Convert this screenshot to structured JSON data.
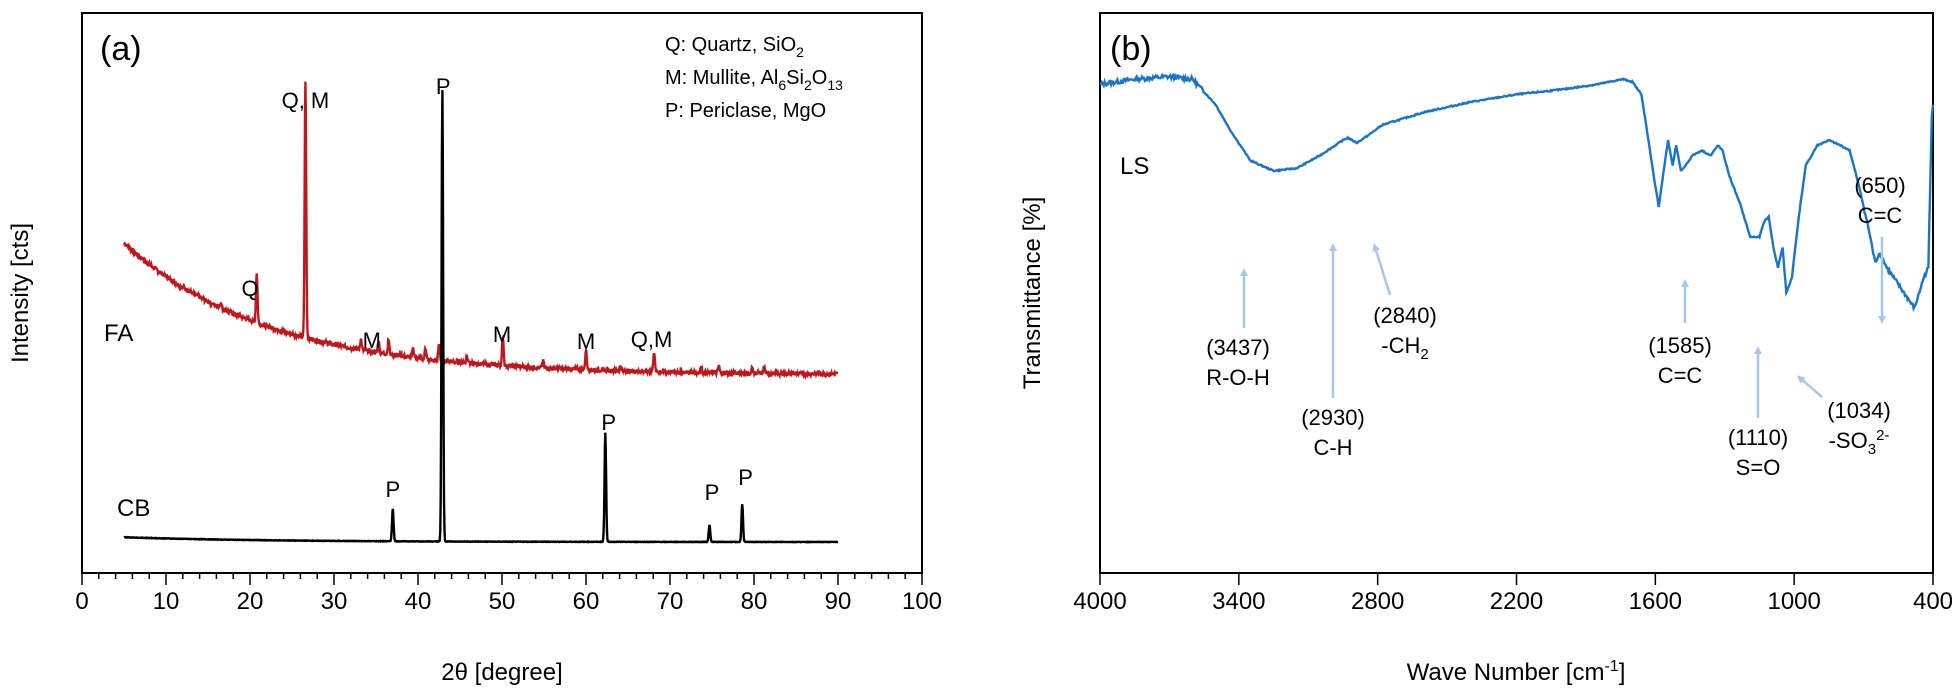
{
  "colors": {
    "fa": "#c0171d",
    "cb": "#000000",
    "ls": "#1a75c8",
    "arrow": "#a8c8ea",
    "axis": "#000000"
  },
  "chart_data": [
    {
      "type": "line",
      "panel_label": "(a)",
      "xlabel": "2θ [degree]",
      "ylabel": "Intensity [cts]",
      "xlim": [
        0,
        100
      ],
      "x_tick_labels": [
        "0",
        "10",
        "20",
        "30",
        "40",
        "50",
        "60",
        "70",
        "80",
        "90",
        "100"
      ],
      "legend": [
        {
          "id": "q",
          "label": "Q: Quartz, SiO",
          "sub": "2",
          "tail": ""
        },
        {
          "id": "m",
          "label": "M: Mullite, Al",
          "sub": "6",
          "mid": "Si",
          "sub2": "2",
          "mid2": "O",
          "sub3": "13"
        },
        {
          "id": "p",
          "label": "P: Periclase, MgO"
        }
      ],
      "series": [
        {
          "name": "FA",
          "baseline_start": 100,
          "baseline_end": 10,
          "peaks": [
            {
              "x": 16.5,
              "h": 4
            },
            {
              "x": 20.8,
              "h": 38
            },
            {
              "x": 26.6,
              "h": 195
            },
            {
              "x": 33.2,
              "h": 8
            },
            {
              "x": 35.3,
              "h": 9
            },
            {
              "x": 36.5,
              "h": 11
            },
            {
              "x": 39.4,
              "h": 7
            },
            {
              "x": 40.9,
              "h": 8
            },
            {
              "x": 42.5,
              "h": 11
            },
            {
              "x": 45.8,
              "h": 4
            },
            {
              "x": 50.1,
              "h": 22
            },
            {
              "x": 54.9,
              "h": 5
            },
            {
              "x": 60.0,
              "h": 15
            },
            {
              "x": 64.1,
              "h": 4
            },
            {
              "x": 68.1,
              "h": 15
            },
            {
              "x": 73.7,
              "h": 4
            },
            {
              "x": 75.8,
              "h": 5
            },
            {
              "x": 79.8,
              "h": 4
            },
            {
              "x": 81.2,
              "h": 5
            }
          ],
          "annotations": [
            {
              "text": "Q",
              "x": 20.0
            },
            {
              "text": "Q, M",
              "x": 26.6
            },
            {
              "text": "M",
              "x": 34.5
            },
            {
              "text": "M",
              "x": 50.0
            },
            {
              "text": "M",
              "x": 60.0
            },
            {
              "text": "Q,M",
              "x": 67.8
            }
          ]
        },
        {
          "name": "CB",
          "baseline_start": 14,
          "baseline_end": 0,
          "peaks": [
            {
              "x": 37.0,
              "h": 95
            },
            {
              "x": 42.9,
              "h": 1320
            },
            {
              "x": 62.3,
              "h": 320
            },
            {
              "x": 74.7,
              "h": 50
            },
            {
              "x": 78.6,
              "h": 110
            }
          ],
          "annotations": [
            {
              "text": "P",
              "x": 37.0
            },
            {
              "text": "P",
              "x": 43.0
            },
            {
              "text": "P",
              "x": 62.7
            },
            {
              "text": "P",
              "x": 75.0
            },
            {
              "text": "P",
              "x": 79.0
            }
          ]
        }
      ]
    },
    {
      "type": "line",
      "panel_label": "(b)",
      "xlabel_main": "Wave Number [cm",
      "xlabel_sup": "-1",
      "xlabel_tail": "]",
      "ylabel": "Transmittance [%]",
      "xlim": [
        4000,
        400
      ],
      "x_ticks": [
        4000,
        3400,
        2800,
        2200,
        1600,
        1000,
        400
      ],
      "x_tick_labels": [
        "4000",
        "3400",
        "2800",
        "2200",
        "1600",
        "1000",
        "400"
      ],
      "series": [
        {
          "name": "LS",
          "points": [
            [
              4000,
              96
            ],
            [
              3850,
              97
            ],
            [
              3700,
              97.5
            ],
            [
              3600,
              97
            ],
            [
              3500,
              92
            ],
            [
              3437,
              87
            ],
            [
              3350,
              81
            ],
            [
              3250,
              79
            ],
            [
              3150,
              79.5
            ],
            [
              3050,
              82
            ],
            [
              2950,
              85
            ],
            [
              2930,
              85.5
            ],
            [
              2890,
              84.5
            ],
            [
              2840,
              86
            ],
            [
              2780,
              88
            ],
            [
              2600,
              90.5
            ],
            [
              2400,
              92.5
            ],
            [
              2200,
              94
            ],
            [
              2000,
              95
            ],
            [
              1850,
              96
            ],
            [
              1740,
              97
            ],
            [
              1700,
              96.5
            ],
            [
              1660,
              94
            ],
            [
              1620,
              82
            ],
            [
              1600,
              76
            ],
            [
              1585,
              72
            ],
            [
              1570,
              77
            ],
            [
              1545,
              85
            ],
            [
              1525,
              80
            ],
            [
              1510,
              84
            ],
            [
              1490,
              79
            ],
            [
              1470,
              80
            ],
            [
              1440,
              82
            ],
            [
              1400,
              83
            ],
            [
              1360,
              82
            ],
            [
              1330,
              84
            ],
            [
              1310,
              83
            ],
            [
              1280,
              78
            ],
            [
              1230,
              72
            ],
            [
              1190,
              66
            ],
            [
              1150,
              66
            ],
            [
              1130,
              69
            ],
            [
              1110,
              70
            ],
            [
              1090,
              64
            ],
            [
              1070,
              60
            ],
            [
              1050,
              64
            ],
            [
              1034,
              55
            ],
            [
              1010,
              58
            ],
            [
              980,
              70
            ],
            [
              950,
              80
            ],
            [
              900,
              84
            ],
            [
              850,
              85
            ],
            [
              800,
              84
            ],
            [
              760,
              83
            ],
            [
              720,
              76
            ],
            [
              680,
              68
            ],
            [
              650,
              61
            ],
            [
              630,
              63
            ],
            [
              600,
              60
            ],
            [
              570,
              58
            ],
            [
              540,
              56
            ],
            [
              510,
              54
            ],
            [
              480,
              52
            ],
            [
              460,
              55
            ],
            [
              440,
              58
            ],
            [
              420,
              60
            ],
            [
              405,
              90
            ],
            [
              400,
              92
            ]
          ],
          "ylim": [
            0,
            110
          ]
        }
      ],
      "annotations": [
        {
          "id": "a3437",
          "line1": "(3437)",
          "line2": "R-O-H",
          "x": 3437
        },
        {
          "id": "a2930",
          "line1": "(2930)",
          "line2": "C-H",
          "x": 2930
        },
        {
          "id": "a2840",
          "line1": "(2840)",
          "line2": "-CH",
          "line2_sub": "2",
          "x": 2840
        },
        {
          "id": "a1585",
          "line1": "(1585)",
          "line2": "C=C",
          "x": 1585
        },
        {
          "id": "a1110",
          "line1": "(1110)",
          "line2": "S=O",
          "x": 1110
        },
        {
          "id": "a1034",
          "line1": "(1034)",
          "line2": "-SO",
          "line2_sub": "3",
          "line2_sup": "2-",
          "x": 1034
        },
        {
          "id": "a650",
          "line1": "(650)",
          "line2": "C=C",
          "x": 650
        }
      ]
    }
  ]
}
